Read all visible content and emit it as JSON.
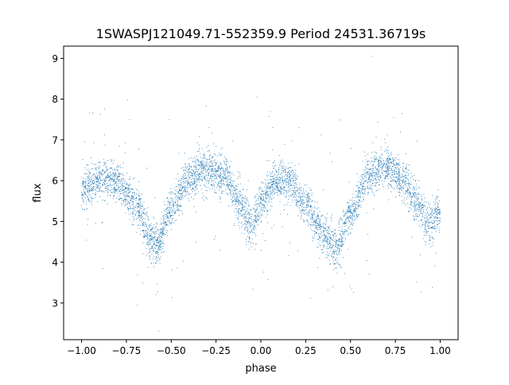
{
  "chart_data": {
    "type": "scatter",
    "title": "1SWASPJ121049.71-552359.9 Period 24531.36719s",
    "xlabel": "phase",
    "ylabel": "flux",
    "xlim": [
      -1.1,
      1.1
    ],
    "ylim": [
      2.1,
      9.3
    ],
    "x_ticks": [
      -1.0,
      -0.75,
      -0.5,
      -0.25,
      0.0,
      0.25,
      0.5,
      0.75,
      1.0
    ],
    "x_tick_labels": [
      "−1.00",
      "−0.75",
      "−0.50",
      "−0.25",
      "0.00",
      "0.25",
      "0.50",
      "0.75",
      "1.00"
    ],
    "y_ticks": [
      3,
      4,
      5,
      6,
      7,
      8,
      9
    ],
    "y_tick_labels": [
      "3",
      "4",
      "5",
      "6",
      "7",
      "8",
      "9"
    ],
    "grid": false,
    "point_color": "#1f77b4",
    "series": [
      {
        "shape_keypoints": {
          "phase": [
            -1.0,
            -0.9,
            -0.8,
            -0.7,
            -0.6,
            -0.58,
            -0.5,
            -0.4,
            -0.3,
            -0.2,
            -0.12,
            -0.07,
            -0.05,
            0.0,
            0.08,
            0.15,
            0.25,
            0.35,
            0.42,
            0.5,
            0.6,
            0.7,
            0.8,
            0.88,
            0.93,
            0.95,
            1.0
          ],
          "flux": [
            5.8,
            6.0,
            6.0,
            5.4,
            4.5,
            4.4,
            5.3,
            6.1,
            6.3,
            6.1,
            5.5,
            5.0,
            4.9,
            5.5,
            5.95,
            6.0,
            5.4,
            4.7,
            4.35,
            5.2,
            6.1,
            6.35,
            6.0,
            5.4,
            4.95,
            4.9,
            5.3
          ]
        }
      }
    ]
  }
}
